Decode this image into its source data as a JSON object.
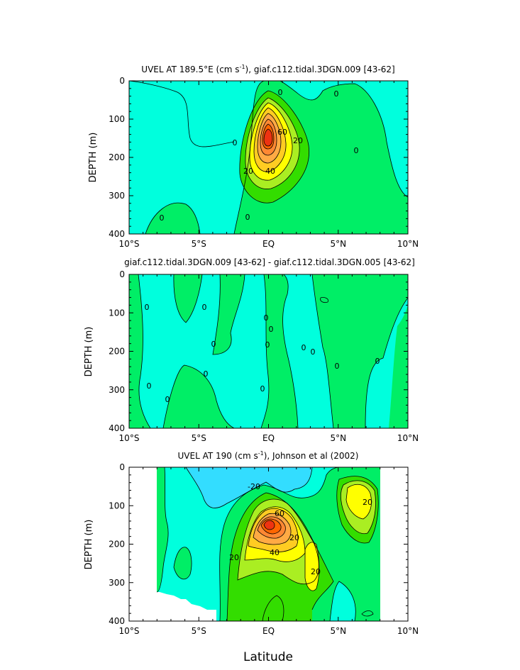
{
  "colors": {
    "level_neg20": "#33ddff",
    "level_0_neg": "#00ffdd",
    "level_0_pos": "#00ee66",
    "level_10": "#33dd00",
    "level_20": "#aaee22",
    "level_30": "#ffff00",
    "level_40": "#ffcc22",
    "level_50": "#ffaa44",
    "level_60": "#ff8833",
    "level_70": "#ff6600",
    "level_80": "#ee3311",
    "contour_line": "#000000"
  },
  "x_label": "Latitude",
  "chart_data": [
    {
      "type": "heatmap",
      "title": "UVEL AT 189.5°E (cm s",
      "title_sup": "-1",
      "title_rest": "), giaf.c112.tidal.3DGN.009 [43-62]",
      "ylabel": "DEPTH (m)",
      "xlabel": "",
      "x_ticks": [
        "10°S",
        "5°S",
        "EQ",
        "5°N",
        "10°N"
      ],
      "y_ticks": [
        "0",
        "100",
        "200",
        "300",
        "400"
      ],
      "xlim": [
        -10,
        10
      ],
      "ylim": [
        400,
        0
      ],
      "contour_labels": [
        "0",
        "0",
        "0",
        "0",
        "0",
        "0",
        "20",
        "20",
        "40",
        "60"
      ],
      "core": {
        "lat": 0,
        "depth": 150,
        "max_value": 80
      },
      "grid": false,
      "legend": "none"
    },
    {
      "type": "heatmap",
      "title": "giaf.c112.tidal.3DGN.009 [43-62] - giaf.c112.tidal.3DGN.005 [43-62]",
      "ylabel": "DEPTH (m)",
      "xlabel": "",
      "x_ticks": [
        "10°S",
        "5°S",
        "EQ",
        "5°N",
        "10°N"
      ],
      "y_ticks": [
        "0",
        "100",
        "200",
        "300",
        "400"
      ],
      "xlim": [
        -10,
        10
      ],
      "ylim": [
        400,
        0
      ],
      "contour_labels": [
        "0",
        "0",
        "0",
        "0",
        "0",
        "0",
        "0",
        "0",
        "0",
        "0",
        "0",
        "0",
        "0",
        "0"
      ],
      "grid": false,
      "legend": "none"
    },
    {
      "type": "heatmap",
      "title": "UVEL AT 190 (cm s",
      "title_sup": "-1",
      "title_rest": "), Johnson et al (2002)",
      "ylabel": "DEPTH (m)",
      "xlabel": "Latitude",
      "x_ticks": [
        "10°S",
        "5°S",
        "EQ",
        "5°N",
        "10°N"
      ],
      "y_ticks": [
        "0",
        "100",
        "200",
        "300",
        "400"
      ],
      "xlim": [
        -10,
        10
      ],
      "ylim": [
        400,
        0
      ],
      "data_extent_lat": [
        -8,
        8
      ],
      "contour_labels": [
        "-20",
        "20",
        "20",
        "20",
        "20",
        "40",
        "60"
      ],
      "core": {
        "lat": 0,
        "depth": 150,
        "max_value": 80
      },
      "grid": false,
      "legend": "none"
    }
  ]
}
